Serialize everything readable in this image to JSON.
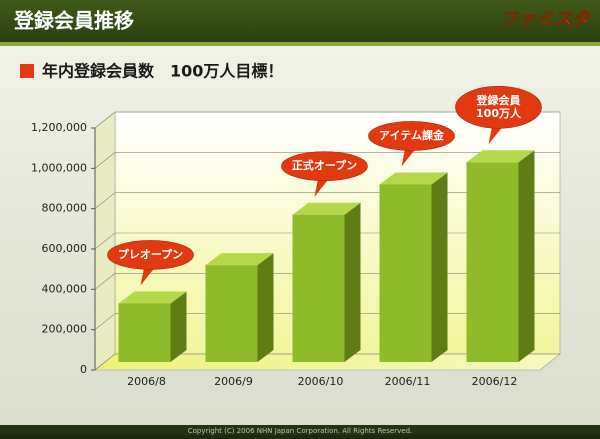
{
  "header": {
    "title": "登録会員推移",
    "logo": "ファミスタ"
  },
  "footer": "Copyright (C) 2006 NHN Japan Corporation. All Rights Reserved.",
  "chart_data": {
    "type": "bar3d",
    "title": "年内登録会員数　100万人目標！",
    "categories": [
      "2006/8",
      "2006/9",
      "2006/10",
      "2006/11",
      "2006/12"
    ],
    "values": [
      330000,
      520000,
      770000,
      920000,
      1030000
    ],
    "color": "#8dbb2a",
    "ylim": [
      0,
      1200000
    ],
    "yticks": [
      0,
      {
        "value": 200000,
        "label": "200,000"
      },
      {
        "value": 400000,
        "label": "400,000"
      },
      {
        "value": 600000,
        "label": "600,000"
      },
      {
        "value": 800000,
        "label": "800,000"
      },
      {
        "value": 1000000,
        "label": "1,000,000"
      },
      {
        "value": 1200000,
        "label": "1,200,000"
      }
    ],
    "grid": true,
    "annotations": [
      {
        "category": "2006/8",
        "text": [
          "プレオープン"
        ]
      },
      {
        "category": "2006/10",
        "text": [
          "正式オープン"
        ]
      },
      {
        "category": "2006/11",
        "text": [
          "アイテム課金"
        ]
      },
      {
        "category": "2006/12",
        "text": [
          "登録会員",
          "100万人"
        ]
      }
    ]
  }
}
